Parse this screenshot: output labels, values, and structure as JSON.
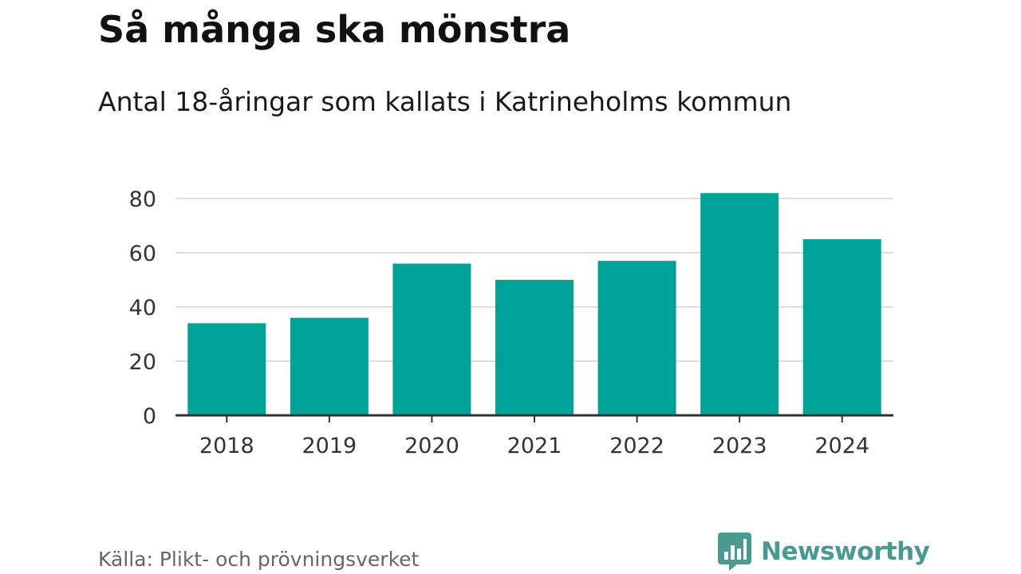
{
  "title": "Så många ska mönstra",
  "subtitle": "Antal 18-åringar som kallats i Katrineholms kommun",
  "source": "Källa: Plikt- och prövningsverket",
  "brand": {
    "name": "Newsworthy",
    "icon": "bar-chart-speech-bubble-icon",
    "color": "#4b9a91"
  },
  "chart_data": {
    "type": "bar",
    "categories": [
      "2018",
      "2019",
      "2020",
      "2021",
      "2022",
      "2023",
      "2024"
    ],
    "values": [
      34,
      36,
      56,
      50,
      57,
      82,
      65
    ],
    "ylim": [
      0,
      80
    ],
    "yticks": [
      0,
      20,
      40,
      60,
      80
    ],
    "ytick_labels": [
      "0",
      "20",
      "40",
      "60",
      "80"
    ],
    "grid": true,
    "bar_color": "#00a398",
    "grid_color": "#dddddd",
    "axis_color": "#333333"
  }
}
